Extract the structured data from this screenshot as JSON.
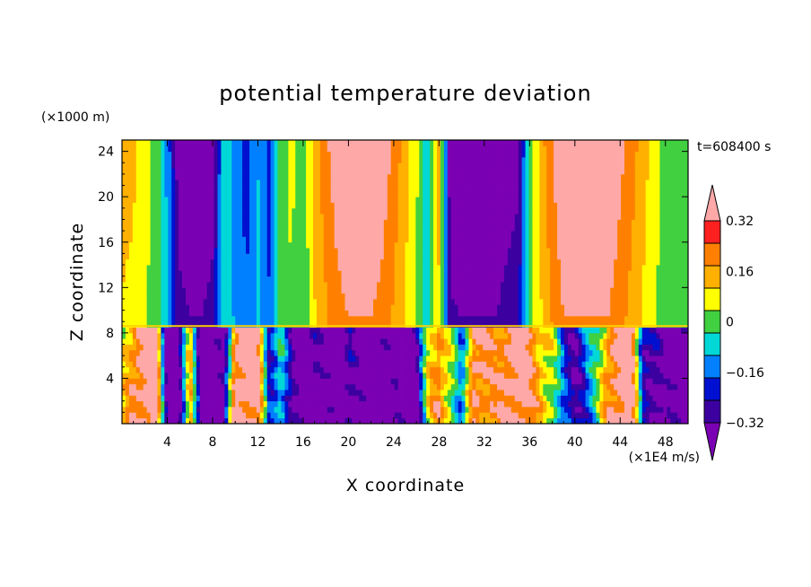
{
  "chart_data": {
    "type": "heatmap",
    "title": "potential temperature deviation",
    "xlabel": "X coordinate",
    "ylabel": "Z coordinate",
    "x_unit": "(×1E4 m/s)",
    "y_unit": "(×1000 m)",
    "time_label": "t=608400 s",
    "xlim": [
      0,
      50
    ],
    "ylim": [
      0,
      25
    ],
    "x_ticks": [
      4,
      8,
      12,
      16,
      20,
      24,
      28,
      32,
      36,
      40,
      44,
      48
    ],
    "y_ticks": [
      4,
      8,
      12,
      16,
      20,
      24
    ],
    "colorbar": {
      "levels": [
        -0.4,
        -0.32,
        -0.24,
        -0.16,
        -0.08,
        0,
        0.08,
        0.16,
        0.24,
        0.32,
        0.4
      ],
      "labels": [
        "0.32",
        "0.16",
        "0",
        "−0.16",
        "−0.32"
      ],
      "label_values": [
        0.32,
        0.16,
        0,
        -0.16,
        -0.32
      ],
      "colors": [
        "#7b00b4",
        "#3c00a0",
        "#0010d0",
        "#0080ff",
        "#00d8d8",
        "#40d040",
        "#ffff00",
        "#ffb000",
        "#ff8000",
        "#ff2020",
        "#ffa8a8"
      ]
    },
    "upper_profile": {
      "x": [
        0,
        1,
        2,
        3,
        4,
        5,
        6,
        7,
        8,
        9,
        10,
        11,
        12,
        13,
        14,
        15,
        16,
        17,
        18,
        19,
        20,
        21,
        22,
        23,
        24,
        25,
        26,
        27,
        28,
        29,
        30,
        31,
        32,
        33,
        34,
        35,
        36,
        37,
        38,
        39,
        40,
        41,
        42,
        43,
        44,
        45,
        46,
        47,
        48,
        49,
        50
      ],
      "value": [
        0.2,
        0.18,
        0.12,
        0.05,
        -0.1,
        -0.38,
        -0.42,
        -0.42,
        -0.38,
        -0.02,
        -0.12,
        -0.2,
        -0.08,
        -0.2,
        0.05,
        0.1,
        0.02,
        0.2,
        0.3,
        0.38,
        0.42,
        0.42,
        0.42,
        0.38,
        0.3,
        0.2,
        0.1,
        -0.05,
        0.2,
        -0.4,
        -0.42,
        -0.42,
        -0.42,
        -0.42,
        -0.38,
        -0.35,
        0.05,
        0.2,
        0.32,
        0.42,
        0.42,
        0.42,
        0.42,
        0.42,
        0.35,
        0.28,
        0.2,
        0.12,
        0.05,
        0.0,
        0.0
      ]
    },
    "lower_layer": {
      "z_top": 8.6,
      "x": [
        0,
        1,
        2,
        3,
        4,
        5,
        6,
        7,
        8,
        9,
        10,
        11,
        12,
        13,
        14,
        15,
        16,
        17,
        18,
        19,
        20,
        21,
        22,
        23,
        24,
        25,
        26,
        27,
        28,
        29,
        30,
        31,
        32,
        33,
        34,
        35,
        36,
        37,
        38,
        39,
        40,
        41,
        42,
        43,
        44,
        45,
        46,
        47,
        48,
        49,
        50
      ],
      "value": [
        0.1,
        0.3,
        0.4,
        0.4,
        -0.4,
        -0.4,
        0.2,
        -0.42,
        -0.42,
        -0.42,
        0.4,
        0.4,
        0.35,
        -0.2,
        0.0,
        -0.35,
        -0.42,
        -0.35,
        -0.42,
        -0.42,
        -0.3,
        -0.42,
        -0.42,
        -0.42,
        -0.42,
        -0.42,
        -0.38,
        0.1,
        0.3,
        0.1,
        -0.2,
        0.35,
        0.3,
        0.25,
        0.35,
        0.4,
        0.3,
        0.2,
        0.1,
        -0.2,
        -0.3,
        -0.15,
        0.0,
        0.3,
        0.38,
        0.4,
        -0.2,
        -0.3,
        -0.42,
        -0.35,
        -0.42
      ]
    }
  }
}
